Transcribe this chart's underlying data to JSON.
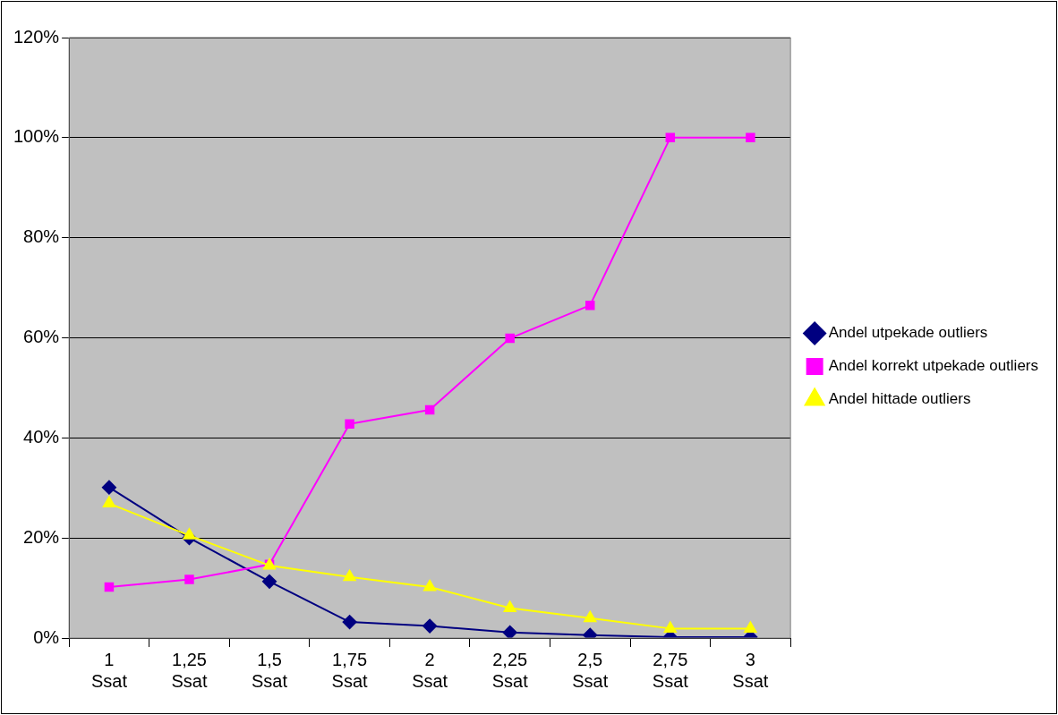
{
  "chart_data": {
    "type": "line",
    "categories": [
      "1 Ssat",
      "1,25 Ssat",
      "1,5 Ssat",
      "1,75 Ssat",
      "2 Ssat",
      "2,25 Ssat",
      "2,5 Ssat",
      "2,75 Ssat",
      "3 Ssat"
    ],
    "series": [
      {
        "name": "Andel utpekade outliers",
        "color": "#000080",
        "marker": "diamond",
        "values": [
          30.1,
          20,
          11.3,
          3.2,
          2.4,
          1.1,
          0.6,
          0.2,
          0.2
        ]
      },
      {
        "name": "Andel korrekt utpekade outliers",
        "color": "#ff00ff",
        "marker": "square",
        "values": [
          10.2,
          11.7,
          14.7,
          42.8,
          45.6,
          59.9,
          66.5,
          100,
          100
        ]
      },
      {
        "name": "Andel hittade outliers",
        "color": "#ffff00",
        "marker": "triangle",
        "values": [
          26.9,
          20.5,
          14.5,
          12.2,
          10.2,
          6.0,
          4.0,
          1.9,
          1.9
        ]
      }
    ],
    "ylim": [
      0,
      120
    ],
    "yticks": [
      {
        "value": 0,
        "label": "0%"
      },
      {
        "value": 20,
        "label": "20%"
      },
      {
        "value": 40,
        "label": "40%"
      },
      {
        "value": 60,
        "label": "60%"
      },
      {
        "value": 80,
        "label": "80%"
      },
      {
        "value": 100,
        "label": "100%"
      },
      {
        "value": 120,
        "label": "120%"
      }
    ],
    "grid": "y",
    "legend": "right",
    "line_style": "solid"
  }
}
